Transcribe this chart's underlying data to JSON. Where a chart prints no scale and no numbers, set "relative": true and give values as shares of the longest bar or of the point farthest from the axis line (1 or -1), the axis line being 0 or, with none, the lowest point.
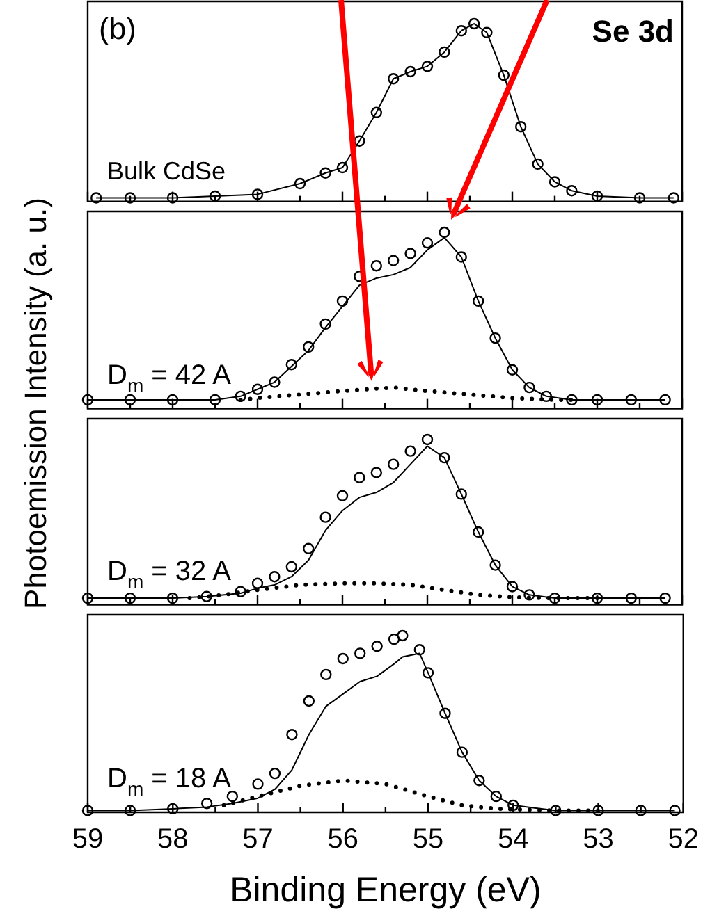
{
  "chart_data": [
    {
      "type": "line",
      "relative": true,
      "ylabel": "Photoemission Intensity (a. u.)",
      "xlim": [
        59,
        52
      ],
      "xticks": [
        59,
        {
          "value": 58.5,
          "label": null
        },
        58,
        {
          "value": 57.5,
          "label": null
        },
        57,
        {
          "value": 56.5,
          "label": null
        },
        56,
        {
          "value": 55.5,
          "label": null
        },
        55,
        {
          "value": 54.5,
          "label": null
        },
        54,
        {
          "value": 53.5,
          "label": null
        },
        53,
        {
          "value": 52.5,
          "label": null
        },
        52
      ],
      "tick_labels": false,
      "annotations": [
        "(b)",
        "Se 3d",
        "Bulk CdSe"
      ],
      "series": [
        {
          "type": "scatter",
          "marker": "circle",
          "color": "#000000",
          "x": [
            58.9,
            58.5,
            58,
            57.5,
            57,
            56.5,
            56.2,
            56,
            55.8,
            55.6,
            55.4,
            55.2,
            55,
            54.8,
            54.6,
            54.45,
            54.3,
            54.1,
            53.9,
            53.7,
            53.5,
            53.3,
            53,
            52.5,
            52.1
          ],
          "values": [
            0.02,
            0.02,
            0.02,
            0.03,
            0.04,
            0.1,
            0.16,
            0.19,
            0.34,
            0.5,
            0.69,
            0.73,
            0.76,
            0.84,
            0.96,
            1,
            0.95,
            0.71,
            0.42,
            0.21,
            0.11,
            0.06,
            0.03,
            0.02,
            0.02
          ]
        },
        {
          "type": "line",
          "color": "#000000",
          "x": [
            58.9,
            58.5,
            58,
            57.5,
            57,
            56.5,
            56.2,
            56,
            55.8,
            55.6,
            55.4,
            55.2,
            55,
            54.8,
            54.6,
            54.45,
            54.3,
            54.1,
            53.9,
            53.7,
            53.5,
            53.3,
            53,
            52.5,
            52.1
          ],
          "values": [
            0.02,
            0.02,
            0.02,
            0.03,
            0.04,
            0.1,
            0.16,
            0.19,
            0.34,
            0.5,
            0.69,
            0.73,
            0.76,
            0.84,
            0.96,
            1,
            0.95,
            0.71,
            0.42,
            0.21,
            0.11,
            0.06,
            0.03,
            0.02,
            0.02
          ]
        }
      ]
    },
    {
      "type": "line",
      "relative": true,
      "xlim": [
        59,
        52
      ],
      "xticks": [
        59,
        {
          "value": 58.5,
          "label": null
        },
        58,
        {
          "value": 57.5,
          "label": null
        },
        57,
        {
          "value": 56.5,
          "label": null
        },
        56,
        {
          "value": 55.5,
          "label": null
        },
        55,
        {
          "value": 54.5,
          "label": null
        },
        54,
        {
          "value": 53.5,
          "label": null
        },
        53,
        {
          "value": 52.5,
          "label": null
        },
        52
      ],
      "tick_labels": false,
      "annotations": [
        "D$_{m}$ = 42 A"
      ],
      "series": [
        {
          "type": "scatter",
          "marker": "circle",
          "color": "#000000",
          "x": [
            59,
            58.5,
            58,
            57.5,
            57.2,
            57,
            56.8,
            56.6,
            56.4,
            56.2,
            56,
            55.8,
            55.6,
            55.4,
            55.2,
            55,
            54.8,
            54.6,
            54.4,
            54.2,
            54,
            53.8,
            53.6,
            53.3,
            53,
            52.6,
            52.2
          ],
          "values": [
            0.05,
            0.05,
            0.05,
            0.05,
            0.07,
            0.11,
            0.15,
            0.25,
            0.35,
            0.48,
            0.61,
            0.75,
            0.81,
            0.84,
            0.88,
            0.94,
            1,
            0.86,
            0.61,
            0.4,
            0.22,
            0.12,
            0.07,
            0.05,
            0.05,
            0.05,
            0.05
          ]
        },
        {
          "type": "line",
          "color": "#000000",
          "x": [
            59,
            58.5,
            58,
            57.5,
            57.2,
            57,
            56.8,
            56.6,
            56.4,
            56.2,
            56,
            55.8,
            55.6,
            55.4,
            55.2,
            55,
            54.8,
            54.6,
            54.4,
            54.2,
            54,
            53.8,
            53.6,
            53.3,
            53,
            52.6,
            52.2
          ],
          "values": [
            0.05,
            0.05,
            0.05,
            0.05,
            0.07,
            0.11,
            0.15,
            0.24,
            0.33,
            0.46,
            0.58,
            0.7,
            0.74,
            0.76,
            0.8,
            0.9,
            0.97,
            0.86,
            0.61,
            0.4,
            0.22,
            0.12,
            0.07,
            0.05,
            0.05,
            0.05,
            0.05
          ]
        },
        {
          "type": "line",
          "line_style": "dotted",
          "color": "#000000",
          "x": [
            57.2,
            57,
            56.5,
            56,
            55.4,
            55,
            54.5,
            54,
            53.5,
            53.2
          ],
          "values": [
            0.05,
            0.06,
            0.08,
            0.1,
            0.12,
            0.1,
            0.08,
            0.06,
            0.05,
            0.05
          ]
        }
      ]
    },
    {
      "type": "line",
      "relative": true,
      "xlim": [
        59,
        52
      ],
      "xticks": [
        59,
        {
          "value": 58.5,
          "label": null
        },
        58,
        {
          "value": 57.5,
          "label": null
        },
        57,
        {
          "value": 56.5,
          "label": null
        },
        56,
        {
          "value": 55.5,
          "label": null
        },
        55,
        {
          "value": 54.5,
          "label": null
        },
        54,
        {
          "value": 53.5,
          "label": null
        },
        53,
        {
          "value": 52.5,
          "label": null
        },
        52
      ],
      "tick_labels": false,
      "annotations": [
        "D$_{m}$ = 32 A"
      ],
      "series": [
        {
          "type": "scatter",
          "marker": "circle",
          "color": "#000000",
          "x": [
            59,
            58.5,
            58,
            57.6,
            57.2,
            57,
            56.8,
            56.6,
            56.4,
            56.2,
            56,
            55.8,
            55.6,
            55.4,
            55.2,
            55,
            54.8,
            54.6,
            54.4,
            54.2,
            54,
            53.8,
            53.5,
            53,
            52.6,
            52.2
          ],
          "values": [
            0.04,
            0.04,
            0.04,
            0.05,
            0.08,
            0.13,
            0.17,
            0.23,
            0.34,
            0.53,
            0.66,
            0.77,
            0.8,
            0.85,
            0.93,
            1,
            0.89,
            0.67,
            0.44,
            0.24,
            0.11,
            0.06,
            0.04,
            0.04,
            0.04,
            0.04
          ]
        },
        {
          "type": "line",
          "color": "#000000",
          "x": [
            59,
            58.5,
            58,
            57.6,
            57.2,
            57,
            56.8,
            56.6,
            56.4,
            56.2,
            56,
            55.8,
            55.6,
            55.4,
            55.2,
            55,
            54.8,
            54.6,
            54.4,
            54.2,
            54,
            53.8,
            53.5,
            53,
            52.6,
            52.2
          ],
          "values": [
            0.04,
            0.04,
            0.04,
            0.05,
            0.07,
            0.1,
            0.12,
            0.17,
            0.27,
            0.45,
            0.57,
            0.65,
            0.68,
            0.74,
            0.85,
            0.96,
            0.89,
            0.67,
            0.44,
            0.24,
            0.11,
            0.06,
            0.04,
            0.04,
            0.04,
            0.04
          ]
        },
        {
          "type": "line",
          "line_style": "dotted",
          "color": "#000000",
          "x": [
            57.8,
            57.4,
            57,
            56.5,
            56,
            55.6,
            55.2,
            54.8,
            54.4,
            54,
            53.5,
            53
          ],
          "values": [
            0.04,
            0.06,
            0.09,
            0.12,
            0.13,
            0.13,
            0.12,
            0.09,
            0.06,
            0.045,
            0.04,
            0.04
          ]
        }
      ]
    },
    {
      "type": "line",
      "relative": true,
      "xlabel": "Binding Energy (eV)",
      "xlim": [
        59,
        52
      ],
      "xticks": [
        59,
        {
          "value": 58.5,
          "label": null
        },
        58,
        {
          "value": 57.5,
          "label": null
        },
        57,
        {
          "value": 56.5,
          "label": null
        },
        56,
        {
          "value": 55.5,
          "label": null
        },
        55,
        {
          "value": 54.5,
          "label": null
        },
        54,
        {
          "value": 53.5,
          "label": null
        },
        53,
        {
          "value": 52.5,
          "label": null
        },
        52
      ],
      "tick_labels": "x",
      "annotations": [
        "D$_{m}$ = 18 A"
      ],
      "series": [
        {
          "type": "scatter",
          "marker": "circle",
          "color": "#000000",
          "x": [
            59,
            58.5,
            58,
            57.6,
            57.3,
            57,
            56.8,
            56.6,
            56.4,
            56.2,
            56,
            55.8,
            55.6,
            55.4,
            55.3,
            55.1,
            55,
            54.8,
            54.6,
            54.4,
            54.2,
            54,
            53.5,
            53,
            52.5,
            52.1
          ],
          "values": [
            0.01,
            0.01,
            0.02,
            0.05,
            0.09,
            0.16,
            0.22,
            0.44,
            0.63,
            0.78,
            0.87,
            0.9,
            0.94,
            0.98,
            1,
            0.92,
            0.79,
            0.56,
            0.34,
            0.18,
            0.09,
            0.04,
            0.01,
            0.01,
            0.01,
            0.01
          ]
        },
        {
          "type": "line",
          "color": "#000000",
          "x": [
            59,
            58.5,
            58,
            57.6,
            57.3,
            57,
            56.8,
            56.6,
            56.4,
            56.2,
            56,
            55.8,
            55.6,
            55.4,
            55.3,
            55.1,
            55,
            54.8,
            54.6,
            54.4,
            54.2,
            54,
            53.5,
            53,
            52.5,
            52.1
          ],
          "values": [
            0.01,
            0.01,
            0.02,
            0.03,
            0.05,
            0.08,
            0.13,
            0.24,
            0.44,
            0.6,
            0.67,
            0.74,
            0.77,
            0.84,
            0.88,
            0.9,
            0.79,
            0.56,
            0.34,
            0.18,
            0.09,
            0.04,
            0.01,
            0.01,
            0.01,
            0.01
          ]
        },
        {
          "type": "line",
          "line_style": "dotted",
          "color": "#000000",
          "x": [
            57.4,
            57,
            56.5,
            56,
            55.5,
            55,
            54.6,
            54.2,
            53.5,
            53
          ],
          "values": [
            0.04,
            0.09,
            0.15,
            0.18,
            0.16,
            0.09,
            0.04,
            0.02,
            0.01,
            0.01
          ]
        }
      ]
    }
  ]
}
